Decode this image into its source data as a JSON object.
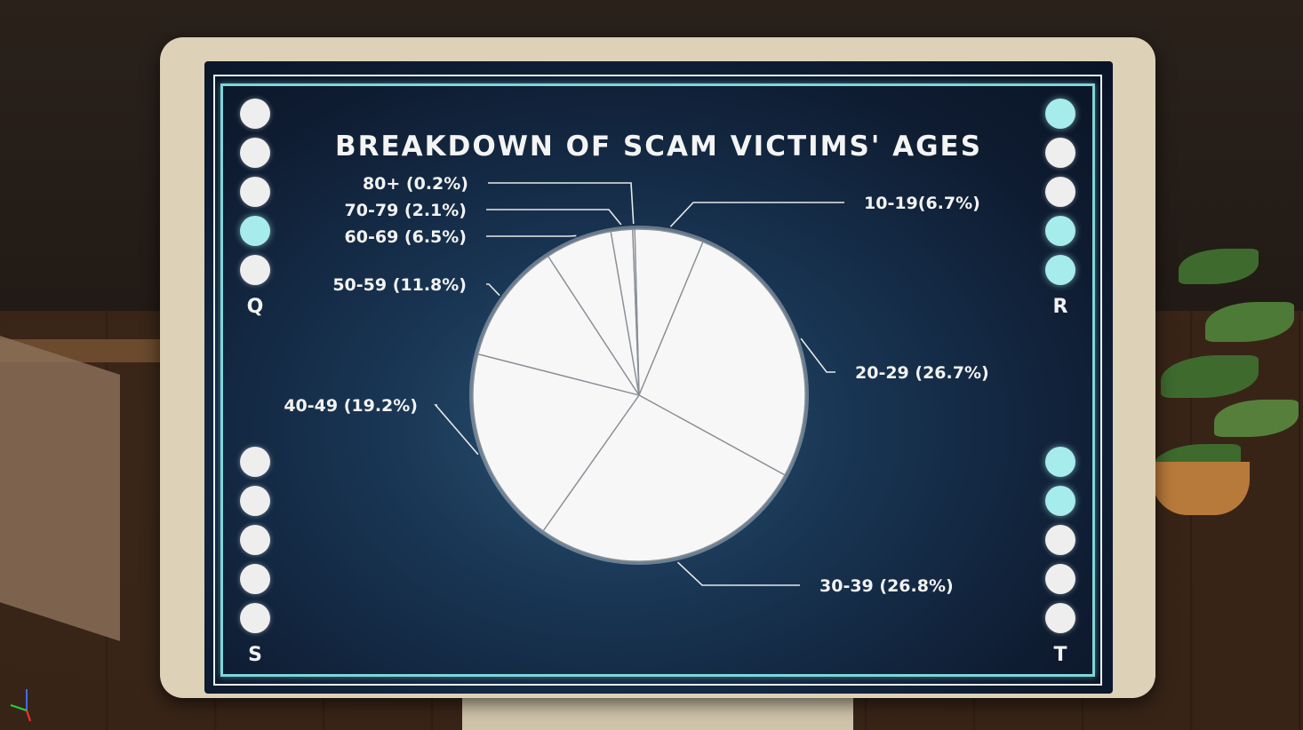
{
  "screen": {
    "title": "BREAKDOWN OF SCAM VICTIMS' AGES",
    "panels": [
      {
        "label": "Q",
        "lights": [
          false,
          false,
          false,
          true,
          false
        ]
      },
      {
        "label": "R",
        "lights": [
          true,
          false,
          false,
          true,
          true
        ]
      },
      {
        "label": "S",
        "lights": [
          false,
          false,
          false,
          false,
          false
        ]
      },
      {
        "label": "T",
        "lights": [
          true,
          true,
          false,
          false,
          false
        ]
      }
    ]
  },
  "chart_data": {
    "type": "pie",
    "title": "BREAKDOWN OF SCAM VICTIMS' AGES",
    "slices": [
      {
        "label": "10-19(6.7%)",
        "value": 6.7
      },
      {
        "label": "20-29 (26.7%)",
        "value": 26.7
      },
      {
        "label": "30-39 (26.8%)",
        "value": 26.8
      },
      {
        "label": "40-49 (19.2%)",
        "value": 19.2
      },
      {
        "label": "50-59 (11.8%)",
        "value": 11.8
      },
      {
        "label": "60-69 (6.5%)",
        "value": 6.5
      },
      {
        "label": "70-79 (2.1%)",
        "value": 2.1
      },
      {
        "label": "80+ (0.2%)",
        "value": 0.2
      }
    ],
    "colors": {
      "slice": "#f7f7f7",
      "edge": "#8a8f96",
      "label": "#f2f2f2"
    }
  }
}
